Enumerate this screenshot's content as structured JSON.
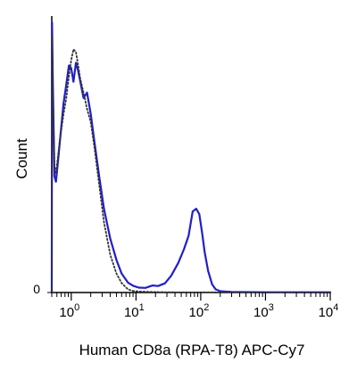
{
  "chart_data": {
    "type": "line",
    "title": "",
    "xlabel": "Human CD8a (RPA-T8) APC-Cy7",
    "ylabel": "Count",
    "x_scale": "log",
    "xlim": [
      0.5,
      10000
    ],
    "ylim": [
      0,
      1
    ],
    "grid": false,
    "legend": "none",
    "y_ticks": [
      {
        "value": 0,
        "label": "0"
      }
    ],
    "x_ticks": [
      {
        "value": 1,
        "base": "10",
        "exp": "0"
      },
      {
        "value": 10,
        "base": "10",
        "exp": "1"
      },
      {
        "value": 100,
        "base": "10",
        "exp": "2"
      },
      {
        "value": 1000,
        "base": "10",
        "exp": "3"
      },
      {
        "value": 10000,
        "base": "10",
        "exp": "4"
      }
    ],
    "series": [
      {
        "style": "solid",
        "color": "#2020c8",
        "points": [
          [
            0.5,
            0.0
          ],
          [
            0.505,
            1.0
          ],
          [
            0.52,
            0.78
          ],
          [
            0.55,
            0.43
          ],
          [
            0.58,
            0.41
          ],
          [
            0.62,
            0.48
          ],
          [
            0.68,
            0.58
          ],
          [
            0.76,
            0.7
          ],
          [
            0.84,
            0.77
          ],
          [
            0.92,
            0.84
          ],
          [
            1.0,
            0.83
          ],
          [
            1.08,
            0.78
          ],
          [
            1.18,
            0.85
          ],
          [
            1.28,
            0.82
          ],
          [
            1.38,
            0.78
          ],
          [
            1.55,
            0.72
          ],
          [
            1.75,
            0.74
          ],
          [
            2.0,
            0.66
          ],
          [
            2.3,
            0.55
          ],
          [
            2.7,
            0.43
          ],
          [
            3.2,
            0.31
          ],
          [
            4.0,
            0.2
          ],
          [
            5.0,
            0.12
          ],
          [
            6.0,
            0.07
          ],
          [
            7.5,
            0.037
          ],
          [
            9.0,
            0.025
          ],
          [
            11,
            0.018
          ],
          [
            14,
            0.017
          ],
          [
            18,
            0.026
          ],
          [
            22,
            0.024
          ],
          [
            28,
            0.034
          ],
          [
            35,
            0.062
          ],
          [
            45,
            0.11
          ],
          [
            55,
            0.16
          ],
          [
            65,
            0.21
          ],
          [
            75,
            0.3
          ],
          [
            85,
            0.31
          ],
          [
            95,
            0.29
          ],
          [
            105,
            0.22
          ],
          [
            115,
            0.15
          ],
          [
            130,
            0.08
          ],
          [
            150,
            0.03
          ],
          [
            170,
            0.012
          ],
          [
            200,
            0.005
          ],
          [
            300,
            0.002
          ],
          [
            1000,
            0.001
          ],
          [
            10000,
            0.001
          ]
        ]
      },
      {
        "style": "dotted",
        "color": "#333333",
        "points": [
          [
            0.5,
            0.0
          ],
          [
            0.505,
            0.95
          ],
          [
            0.52,
            0.74
          ],
          [
            0.55,
            0.47
          ],
          [
            0.58,
            0.44
          ],
          [
            0.62,
            0.5
          ],
          [
            0.68,
            0.58
          ],
          [
            0.76,
            0.66
          ],
          [
            0.84,
            0.72
          ],
          [
            0.92,
            0.8
          ],
          [
            1.0,
            0.86
          ],
          [
            1.08,
            0.9
          ],
          [
            1.18,
            0.89
          ],
          [
            1.28,
            0.84
          ],
          [
            1.38,
            0.79
          ],
          [
            1.55,
            0.74
          ],
          [
            1.75,
            0.68
          ],
          [
            2.0,
            0.63
          ],
          [
            2.3,
            0.53
          ],
          [
            2.7,
            0.4
          ],
          [
            3.2,
            0.26
          ],
          [
            4.0,
            0.14
          ],
          [
            5.0,
            0.07
          ],
          [
            6.0,
            0.035
          ],
          [
            7.5,
            0.012
          ],
          [
            9.0,
            0.006
          ],
          [
            11,
            0.004
          ],
          [
            14,
            0.003
          ],
          [
            20,
            0.002
          ],
          [
            30,
            0.001
          ],
          [
            10000,
            0.0
          ]
        ]
      }
    ]
  }
}
